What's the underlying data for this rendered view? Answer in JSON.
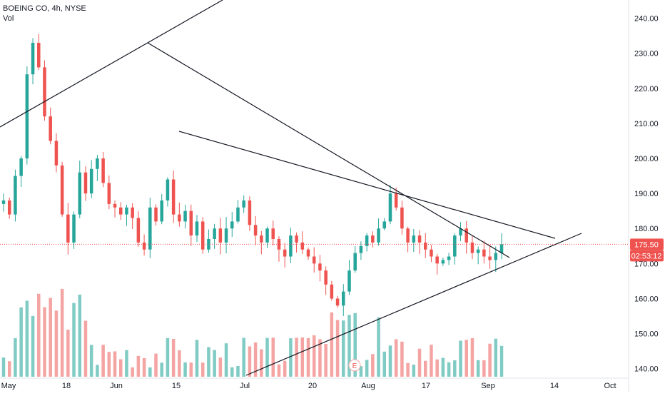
{
  "legend": {
    "symbol": "BOEING CO, 4h, NYSE",
    "volume_label": "Vol"
  },
  "colors": {
    "up": "#26a69a",
    "down": "#ef5350",
    "up_vol": "#80cbc4",
    "down_vol": "#f4a5a3",
    "price_line": "#ef5350",
    "trendline": "#131722",
    "axis_text": "#131722"
  },
  "chart_data": {
    "type": "candlestick",
    "symbol": "BOEING CO",
    "interval": "4h",
    "exchange": "NYSE",
    "y_axis": {
      "ticks": [
        140,
        150,
        160,
        170,
        180,
        190,
        200,
        210,
        220,
        230,
        240
      ],
      "tick_labels": [
        "140.00",
        "150.00",
        "160.00",
        "170.00",
        "180.00",
        "190.00",
        "200.00",
        "210.00",
        "220.00",
        "230.00",
        "240.00"
      ],
      "ylim": [
        138.5,
        244
      ]
    },
    "x_axis": {
      "tick_labels": [
        "May",
        "18",
        "Jun",
        "15",
        "Jul",
        "20",
        "Aug",
        "17",
        "Sep",
        "14",
        "Oct"
      ]
    },
    "last_price": {
      "value": "175.50",
      "countdown": "02:53:12"
    },
    "earnings_marker": "E",
    "closes": [
      188,
      184,
      195,
      200,
      224,
      233,
      226,
      212,
      205,
      198,
      184,
      176,
      184,
      196,
      190,
      197,
      200,
      193,
      187,
      186,
      184,
      186,
      183,
      176,
      174,
      186,
      182,
      188,
      194,
      184,
      182,
      185,
      178,
      182,
      174,
      177,
      180,
      176,
      180,
      182,
      186,
      188,
      181,
      178,
      176,
      180,
      177,
      174,
      172,
      178,
      176,
      174,
      172,
      170,
      168,
      164,
      160,
      158,
      162,
      168,
      173,
      175,
      178,
      176,
      180,
      182,
      190,
      186,
      180,
      176,
      178,
      176,
      174,
      172,
      170,
      171,
      172,
      178,
      180,
      176,
      173,
      174,
      172,
      171,
      173,
      175.5
    ],
    "trendlines": [
      {
        "from": [
          "May",
          210
        ],
        "to": [
          "Jun",
          234
        ]
      },
      {
        "from": [
          "Jun",
          234
        ],
        "to": [
          "Sep",
          173
        ]
      },
      {
        "from": [
          "15",
          209
        ],
        "to": [
          "Sep",
          177
        ]
      },
      {
        "from": [
          "Jul",
          140
        ],
        "to": [
          "14",
          179
        ]
      }
    ]
  }
}
